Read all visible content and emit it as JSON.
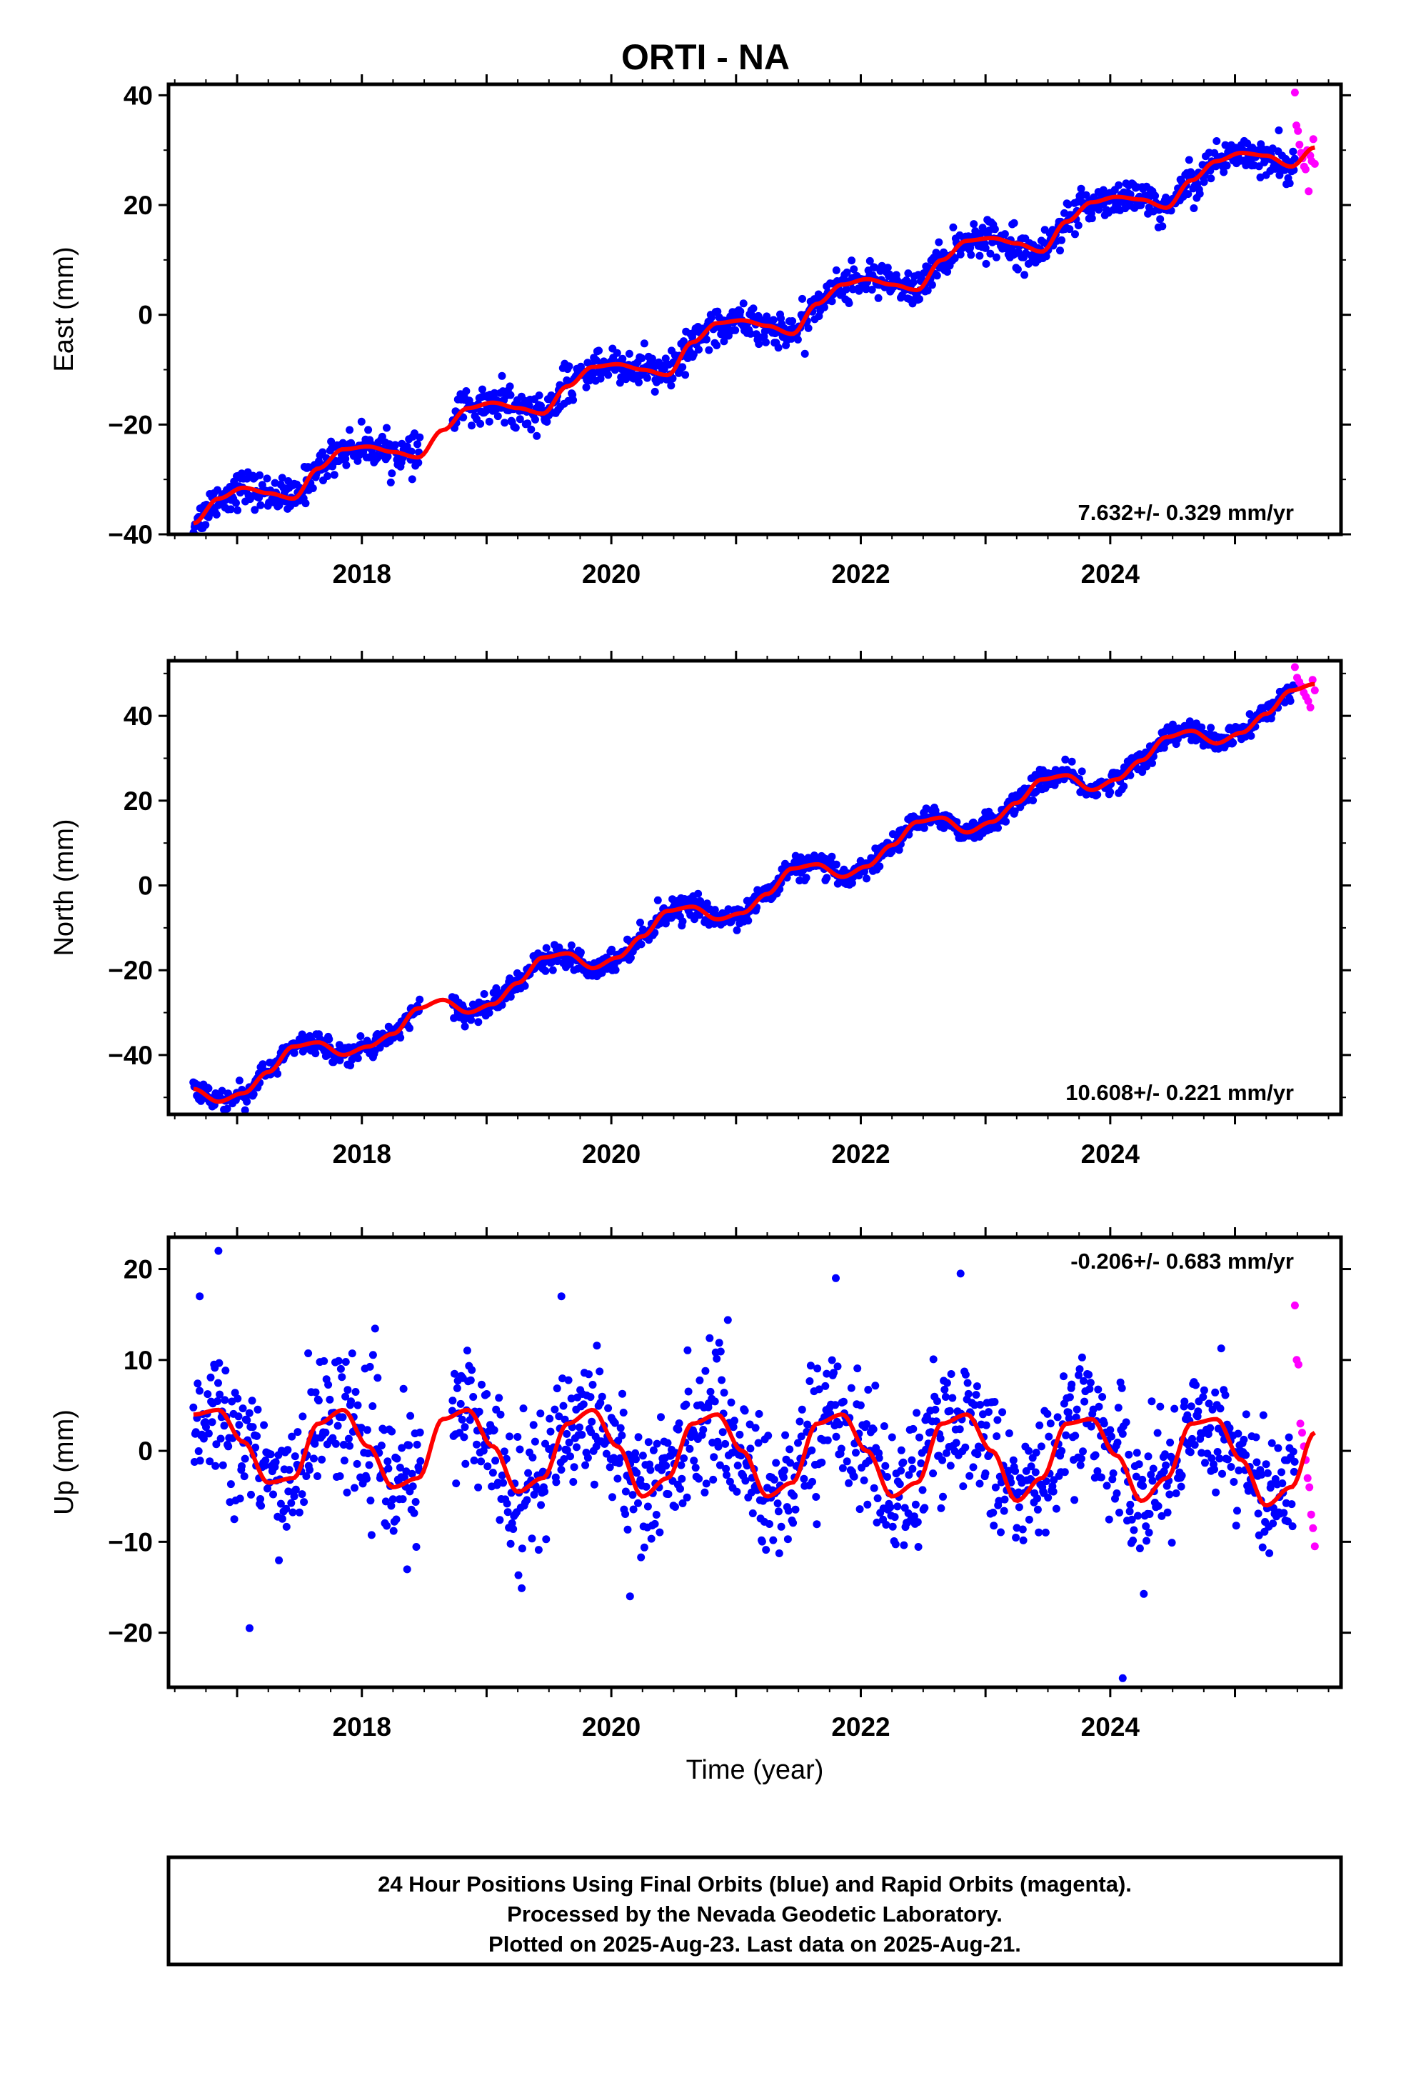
{
  "title": "ORTI - NA",
  "xlabel": "Time (year)",
  "footer": {
    "line1": "24 Hour Positions Using Final Orbits (blue) and Rapid Orbits (magenta).",
    "line2": "Processed by the Nevada Geodetic Laboratory.",
    "line3": "Plotted on 2025-Aug-23. Last data on 2025-Aug-21."
  },
  "colors": {
    "final": "#0000ff",
    "rapid": "#ff00ff",
    "model": "#ff0000",
    "frame": "#000000"
  },
  "chart_data": [
    {
      "type": "scatter",
      "component": "east",
      "ylabel": "East (mm)",
      "rate_label": "7.632+/- 0.329 mm/yr",
      "rate_position": "bottom-right",
      "xlim": [
        2016.45,
        2025.85
      ],
      "ylim": [
        -40,
        42
      ],
      "xticks": [
        2018,
        2020,
        2022,
        2024
      ],
      "yticks": [
        -40,
        -20,
        0,
        20,
        40
      ],
      "data_start": 2016.65,
      "data_end": 2025.48,
      "rapid_start": 2025.48,
      "rapid_end": 2025.64,
      "model": {
        "times": [
          2016.65,
          2016.85,
          2017.05,
          2017.25,
          2017.45,
          2017.65,
          2017.85,
          2018.05,
          2018.25,
          2018.45,
          2018.65,
          2018.85,
          2019.05,
          2019.25,
          2019.45,
          2019.65,
          2019.85,
          2020.05,
          2020.25,
          2020.45,
          2020.65,
          2020.85,
          2021.05,
          2021.25,
          2021.45,
          2021.65,
          2021.85,
          2022.05,
          2022.25,
          2022.45,
          2022.65,
          2022.85,
          2023.05,
          2023.25,
          2023.45,
          2023.65,
          2023.85,
          2024.05,
          2024.25,
          2024.45,
          2024.65,
          2024.85,
          2025.05,
          2025.25,
          2025.45,
          2025.64
        ],
        "values": [
          -38,
          -33.5,
          -31.5,
          -32.5,
          -33.5,
          -28,
          -24.5,
          -24,
          -25,
          -26,
          -21,
          -17,
          -16,
          -17,
          -18,
          -13,
          -9.5,
          -9,
          -10,
          -11,
          -5,
          -1.5,
          -1,
          -2,
          -3.5,
          2,
          5.5,
          6.5,
          5.5,
          4.5,
          10,
          13.5,
          14,
          13,
          11.5,
          17,
          20.5,
          21.5,
          21,
          19.5,
          24.5,
          28,
          29.5,
          29,
          27,
          30.5
        ]
      },
      "scatter_sigma": 1.6,
      "rapid_values": [
        40.5,
        34.5,
        33.5,
        31,
        29.5,
        28.5,
        27,
        26.5,
        30,
        22.5,
        29,
        28,
        32,
        27.5
      ]
    },
    {
      "type": "scatter",
      "component": "north",
      "ylabel": "North (mm)",
      "rate_label": "10.608+/- 0.221 mm/yr",
      "rate_position": "bottom-right",
      "xlim": [
        2016.45,
        2025.85
      ],
      "ylim": [
        -54,
        53
      ],
      "xticks": [
        2018,
        2020,
        2022,
        2024
      ],
      "yticks": [
        -40,
        -20,
        0,
        20,
        40
      ],
      "data_start": 2016.65,
      "data_end": 2025.48,
      "rapid_start": 2025.48,
      "rapid_end": 2025.64,
      "model": {
        "times": [
          2016.65,
          2016.85,
          2017.05,
          2017.25,
          2017.45,
          2017.65,
          2017.85,
          2018.05,
          2018.25,
          2018.45,
          2018.65,
          2018.85,
          2019.05,
          2019.25,
          2019.45,
          2019.65,
          2019.85,
          2020.05,
          2020.25,
          2020.45,
          2020.65,
          2020.85,
          2021.05,
          2021.25,
          2021.45,
          2021.65,
          2021.85,
          2022.05,
          2022.25,
          2022.45,
          2022.65,
          2022.85,
          2023.05,
          2023.25,
          2023.45,
          2023.65,
          2023.85,
          2024.05,
          2024.25,
          2024.45,
          2024.65,
          2024.85,
          2025.05,
          2025.25,
          2025.45,
          2025.64
        ],
        "values": [
          -48,
          -51,
          -49,
          -44,
          -38,
          -37,
          -40,
          -38,
          -35,
          -29,
          -27,
          -30,
          -28,
          -23,
          -17,
          -16,
          -19.5,
          -17,
          -12,
          -6,
          -5,
          -8,
          -6.5,
          -2,
          4,
          5,
          2,
          4.5,
          9.5,
          15,
          16,
          12.5,
          15,
          19.5,
          25,
          26,
          22.5,
          25,
          29.5,
          35,
          36.5,
          33.5,
          36,
          40.5,
          46,
          47.5
        ]
      },
      "scatter_sigma": 1.3,
      "rapid_values": [
        51.5,
        49,
        48,
        47,
        45.5,
        44.5,
        43.5,
        42,
        48.5,
        46
      ]
    },
    {
      "type": "scatter",
      "component": "up",
      "ylabel": "Up (mm)",
      "rate_label": "-0.206+/- 0.683 mm/yr",
      "rate_position": "top-right",
      "xlim": [
        2016.45,
        2025.85
      ],
      "ylim": [
        -26,
        23.5
      ],
      "xticks": [
        2018,
        2020,
        2022,
        2024
      ],
      "yticks": [
        -20,
        -10,
        0,
        10,
        20
      ],
      "data_start": 2016.65,
      "data_end": 2025.48,
      "rapid_start": 2025.48,
      "rapid_end": 2025.64,
      "model": {
        "times": [
          2016.65,
          2016.85,
          2017.05,
          2017.25,
          2017.45,
          2017.65,
          2017.85,
          2018.05,
          2018.25,
          2018.45,
          2018.65,
          2018.85,
          2019.05,
          2019.25,
          2019.45,
          2019.65,
          2019.85,
          2020.05,
          2020.25,
          2020.45,
          2020.65,
          2020.85,
          2021.05,
          2021.25,
          2021.45,
          2021.65,
          2021.85,
          2022.05,
          2022.25,
          2022.45,
          2022.65,
          2022.85,
          2023.05,
          2023.25,
          2023.45,
          2023.65,
          2023.85,
          2024.05,
          2024.25,
          2024.45,
          2024.65,
          2024.85,
          2025.05,
          2025.25,
          2025.45,
          2025.64
        ],
        "values": [
          4,
          4.5,
          1,
          -3.5,
          -3,
          3,
          4.5,
          0.5,
          -4,
          -3,
          3.5,
          4.5,
          0.5,
          -4.5,
          -3,
          3,
          4.5,
          0.5,
          -5,
          -3,
          3,
          4,
          0,
          -5,
          -3.5,
          3,
          4,
          0,
          -5,
          -3.5,
          3,
          4,
          0,
          -5.5,
          -3,
          3,
          3.5,
          -0.5,
          -5.5,
          -3,
          3,
          3.5,
          -1,
          -6,
          -4,
          2
        ]
      },
      "scatter_sigma": 3.6,
      "outliers": [
        [
          2016.85,
          22
        ],
        [
          2017.1,
          -19.5
        ],
        [
          2019.6,
          17
        ],
        [
          2020.15,
          -16
        ],
        [
          2021.8,
          19
        ],
        [
          2022.8,
          19.5
        ],
        [
          2024.1,
          -25
        ],
        [
          2016.7,
          17
        ]
      ],
      "rapid_values": [
        16,
        10,
        9.5,
        3,
        2,
        0.5,
        -1,
        -3,
        -4,
        -7,
        -8.5,
        -10.5
      ]
    }
  ]
}
